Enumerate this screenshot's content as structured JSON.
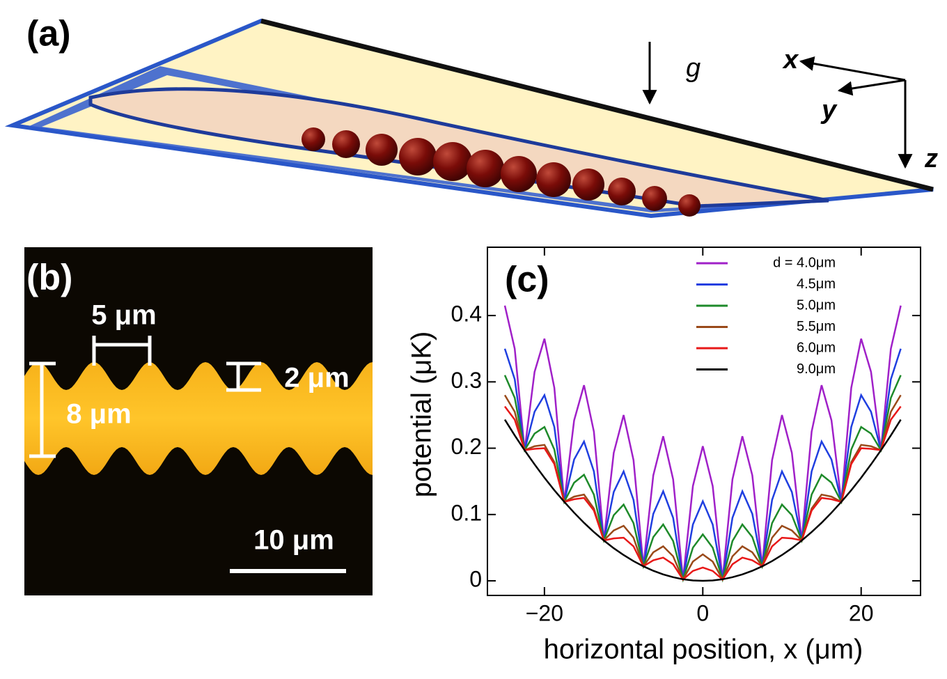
{
  "panel_a": {
    "label": "(a)",
    "gravity": "g",
    "axes": [
      "x",
      "y",
      "z"
    ]
  },
  "panel_b": {
    "label": "(b)",
    "period": "5 μm",
    "depth": "2 μm",
    "width": "8 μm",
    "scale_bar": "10 μm"
  },
  "chart_data": {
    "type": "line",
    "label": "(c)",
    "xlabel": "horizontal position, x (μm)",
    "ylabel": "potential (μK)",
    "xlim": [
      -27.2,
      27.5
    ],
    "ylim": [
      -0.022,
      0.503
    ],
    "xticks": [
      {
        "value": -20,
        "label": "−20"
      },
      0,
      20
    ],
    "yticks": [
      0,
      0.1,
      0.2,
      0.3,
      0.4
    ],
    "x": [
      -25,
      -23.75,
      -22.5,
      -21.25,
      -20,
      -18.75,
      -17.5,
      -16.25,
      -15,
      -13.75,
      -12.5,
      -11.25,
      -10,
      -8.75,
      -7.5,
      -6.25,
      -5,
      -3.75,
      -2.5,
      -1.25,
      0,
      1.25,
      2.5,
      3.75,
      5,
      6.25,
      7.5,
      8.75,
      10,
      11.25,
      12.5,
      13.75,
      15,
      16.25,
      17.5,
      18.75,
      20,
      21.25,
      22.5,
      23.75,
      25
    ],
    "series": [
      {
        "name": "d = 4.0μm",
        "color": "#a020c8",
        "values": [
          0.415,
          0.35,
          0.197,
          0.315,
          0.365,
          0.291,
          0.119,
          0.242,
          0.295,
          0.225,
          0.061,
          0.193,
          0.25,
          0.182,
          0.022,
          0.159,
          0.218,
          0.153,
          0.002,
          0.143,
          0.203,
          0.143,
          0.002,
          0.153,
          0.218,
          0.159,
          0.022,
          0.182,
          0.25,
          0.193,
          0.061,
          0.225,
          0.295,
          0.242,
          0.119,
          0.291,
          0.365,
          0.315,
          0.197,
          0.35,
          0.415
        ]
      },
      {
        "name": "4.5μm",
        "color": "#1f3fe0",
        "values": [
          0.35,
          0.304,
          0.197,
          0.255,
          0.28,
          0.232,
          0.119,
          0.183,
          0.21,
          0.165,
          0.061,
          0.134,
          0.165,
          0.122,
          0.022,
          0.101,
          0.135,
          0.095,
          0.002,
          0.085,
          0.12,
          0.085,
          0.002,
          0.095,
          0.135,
          0.101,
          0.022,
          0.122,
          0.165,
          0.134,
          0.061,
          0.165,
          0.21,
          0.183,
          0.119,
          0.232,
          0.28,
          0.255,
          0.197,
          0.304,
          0.35
        ]
      },
      {
        "name": "5.0μm",
        "color": "#1e8a2a",
        "values": [
          0.31,
          0.276,
          0.197,
          0.222,
          0.232,
          0.198,
          0.119,
          0.148,
          0.16,
          0.13,
          0.061,
          0.099,
          0.115,
          0.087,
          0.022,
          0.066,
          0.085,
          0.06,
          0.002,
          0.05,
          0.07,
          0.05,
          0.002,
          0.06,
          0.085,
          0.066,
          0.022,
          0.087,
          0.115,
          0.099,
          0.061,
          0.13,
          0.16,
          0.148,
          0.119,
          0.198,
          0.232,
          0.222,
          0.197,
          0.276,
          0.31
        ]
      },
      {
        "name": "5.5μm",
        "color": "#9a4a1a",
        "values": [
          0.28,
          0.255,
          0.197,
          0.203,
          0.205,
          0.179,
          0.119,
          0.127,
          0.13,
          0.109,
          0.061,
          0.076,
          0.083,
          0.065,
          0.022,
          0.043,
          0.052,
          0.037,
          0.002,
          0.029,
          0.04,
          0.029,
          0.002,
          0.037,
          0.052,
          0.043,
          0.022,
          0.065,
          0.083,
          0.076,
          0.061,
          0.109,
          0.13,
          0.127,
          0.119,
          0.179,
          0.205,
          0.203,
          0.197,
          0.255,
          0.28
        ]
      },
      {
        "name": "6.0μm",
        "color": "#e81818",
        "values": [
          0.263,
          0.243,
          0.197,
          0.199,
          0.2,
          0.176,
          0.119,
          0.123,
          0.125,
          0.106,
          0.061,
          0.064,
          0.065,
          0.052,
          0.022,
          0.031,
          0.035,
          0.025,
          0.002,
          0.015,
          0.02,
          0.015,
          0.002,
          0.025,
          0.035,
          0.031,
          0.022,
          0.052,
          0.065,
          0.064,
          0.061,
          0.106,
          0.125,
          0.123,
          0.119,
          0.176,
          0.2,
          0.199,
          0.197,
          0.243,
          0.263
        ]
      },
      {
        "name": "9.0μm",
        "color": "#000000",
        "values": [
          0.243,
          0.2193,
          0.1968,
          0.1756,
          0.1555,
          0.1367,
          0.1191,
          0.1027,
          0.0875,
          0.0735,
          0.0608,
          0.0492,
          0.0389,
          0.0298,
          0.0219,
          0.0152,
          0.0097,
          0.0055,
          0.0024,
          0.0006,
          0,
          0.0006,
          0.0024,
          0.0055,
          0.0097,
          0.0152,
          0.0219,
          0.0298,
          0.0389,
          0.0492,
          0.0608,
          0.0735,
          0.0875,
          0.1027,
          0.1191,
          0.1367,
          0.1555,
          0.1756,
          0.1968,
          0.2193,
          0.243
        ]
      }
    ]
  }
}
